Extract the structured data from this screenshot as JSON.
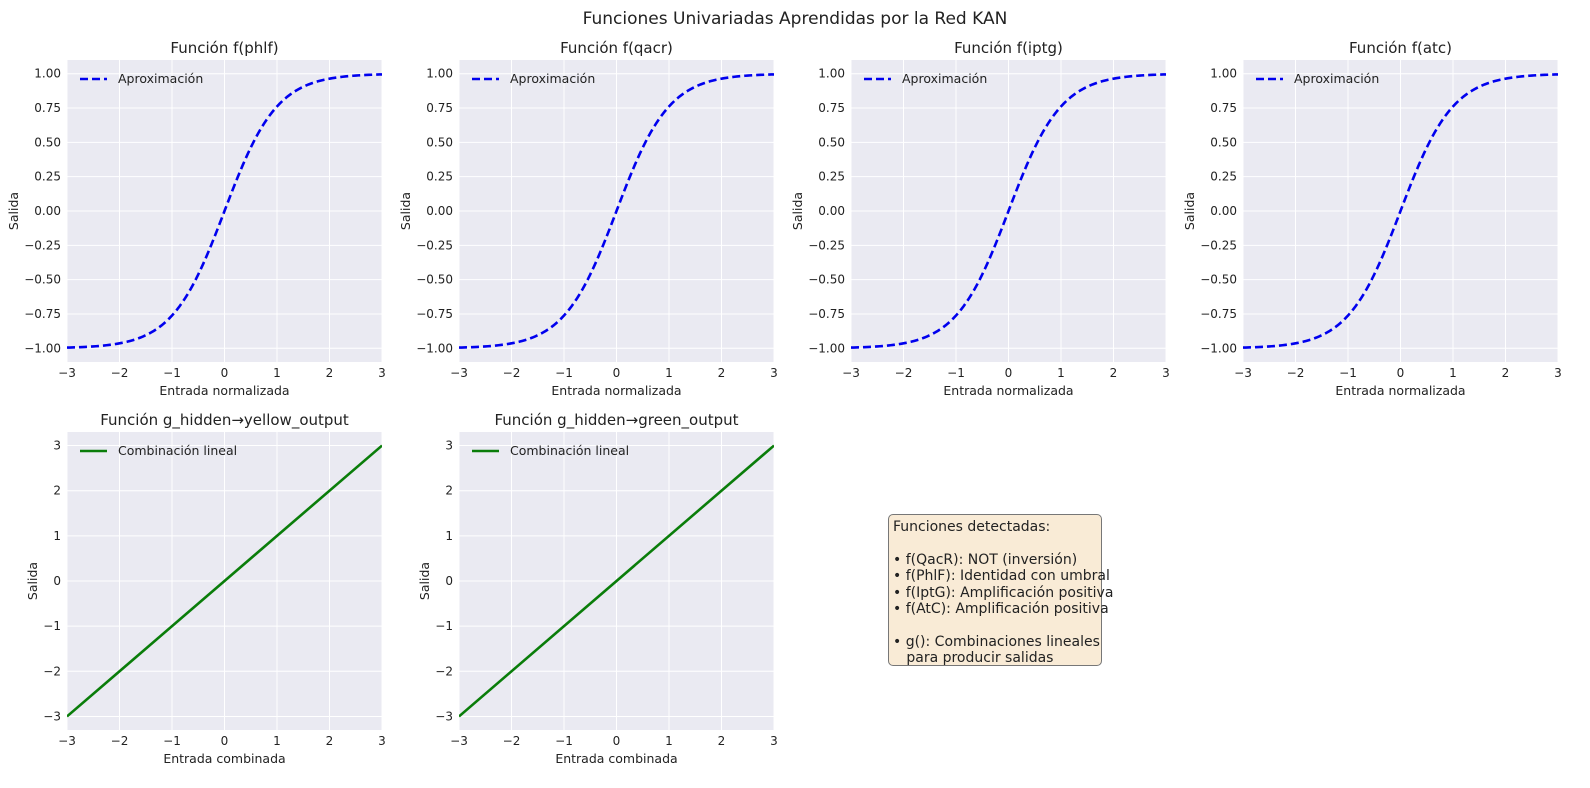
{
  "figure_title": "Funciones Univariadas Aprendidas por la Red KAN",
  "colors": {
    "panel_bg": "#eaeaf2",
    "grid": "#ffffff",
    "blue": "#0000ee",
    "green": "#0a7d0a",
    "note_bg": "#f9ebd6"
  },
  "chart_data": [
    {
      "type": "line",
      "title": "Función f(phlf)",
      "xlabel": "Entrada normalizada",
      "ylabel": "Salida",
      "xlim": [
        -3,
        3
      ],
      "ylim": [
        -1.1,
        1.1
      ],
      "xticks": [
        -3,
        -2,
        -1,
        0,
        1,
        2,
        3
      ],
      "yticks": [
        -1.0,
        -0.75,
        -0.5,
        -0.25,
        0.0,
        0.25,
        0.5,
        0.75,
        1.0
      ],
      "series": [
        {
          "name": "Aproximación",
          "function": "tanh",
          "color": "#0000ee",
          "dashed": true,
          "x": [
            -3,
            -2.5,
            -2,
            -1.5,
            -1,
            -0.5,
            0,
            0.5,
            1,
            1.5,
            2,
            2.5,
            3
          ],
          "y": [
            -0.995,
            -0.987,
            -0.964,
            -0.905,
            -0.762,
            -0.462,
            0,
            0.462,
            0.762,
            0.905,
            0.964,
            0.987,
            0.995
          ]
        }
      ]
    },
    {
      "type": "line",
      "title": "Función f(qacr)",
      "xlabel": "Entrada normalizada",
      "ylabel": "Salida",
      "xlim": [
        -3,
        3
      ],
      "ylim": [
        -1.1,
        1.1
      ],
      "xticks": [
        -3,
        -2,
        -1,
        0,
        1,
        2,
        3
      ],
      "yticks": [
        -1.0,
        -0.75,
        -0.5,
        -0.25,
        0.0,
        0.25,
        0.5,
        0.75,
        1.0
      ],
      "series": [
        {
          "name": "Aproximación",
          "function": "tanh",
          "color": "#0000ee",
          "dashed": true,
          "x": [
            -3,
            -2.5,
            -2,
            -1.5,
            -1,
            -0.5,
            0,
            0.5,
            1,
            1.5,
            2,
            2.5,
            3
          ],
          "y": [
            -0.995,
            -0.987,
            -0.964,
            -0.905,
            -0.762,
            -0.462,
            0,
            0.462,
            0.762,
            0.905,
            0.964,
            0.987,
            0.995
          ]
        }
      ]
    },
    {
      "type": "line",
      "title": "Función f(iptg)",
      "xlabel": "Entrada normalizada",
      "ylabel": "Salida",
      "xlim": [
        -3,
        3
      ],
      "ylim": [
        -1.1,
        1.1
      ],
      "xticks": [
        -3,
        -2,
        -1,
        0,
        1,
        2,
        3
      ],
      "yticks": [
        -1.0,
        -0.75,
        -0.5,
        -0.25,
        0.0,
        0.25,
        0.5,
        0.75,
        1.0
      ],
      "series": [
        {
          "name": "Aproximación",
          "function": "tanh",
          "color": "#0000ee",
          "dashed": true,
          "x": [
            -3,
            -2.5,
            -2,
            -1.5,
            -1,
            -0.5,
            0,
            0.5,
            1,
            1.5,
            2,
            2.5,
            3
          ],
          "y": [
            -0.995,
            -0.987,
            -0.964,
            -0.905,
            -0.762,
            -0.462,
            0,
            0.462,
            0.762,
            0.905,
            0.964,
            0.987,
            0.995
          ]
        }
      ]
    },
    {
      "type": "line",
      "title": "Función f(atc)",
      "xlabel": "Entrada normalizada",
      "ylabel": "Salida",
      "xlim": [
        -3,
        3
      ],
      "ylim": [
        -1.1,
        1.1
      ],
      "xticks": [
        -3,
        -2,
        -1,
        0,
        1,
        2,
        3
      ],
      "yticks": [
        -1.0,
        -0.75,
        -0.5,
        -0.25,
        0.0,
        0.25,
        0.5,
        0.75,
        1.0
      ],
      "series": [
        {
          "name": "Aproximación",
          "function": "tanh",
          "color": "#0000ee",
          "dashed": true,
          "x": [
            -3,
            -2.5,
            -2,
            -1.5,
            -1,
            -0.5,
            0,
            0.5,
            1,
            1.5,
            2,
            2.5,
            3
          ],
          "y": [
            -0.995,
            -0.987,
            -0.964,
            -0.905,
            -0.762,
            -0.462,
            0,
            0.462,
            0.762,
            0.905,
            0.964,
            0.987,
            0.995
          ]
        }
      ]
    },
    {
      "type": "line",
      "title": "Función g_hidden→yellow_output",
      "xlabel": "Entrada combinada",
      "ylabel": "Salida",
      "xlim": [
        -3,
        3
      ],
      "ylim": [
        -3.3,
        3.3
      ],
      "xticks": [
        -3,
        -2,
        -1,
        0,
        1,
        2,
        3
      ],
      "yticks": [
        -3,
        -2,
        -1,
        0,
        1,
        2,
        3
      ],
      "series": [
        {
          "name": "Combinación lineal",
          "function": "linear",
          "color": "#0a7d0a",
          "dashed": false,
          "x": [
            -3,
            3
          ],
          "y": [
            -3,
            3
          ]
        }
      ]
    },
    {
      "type": "line",
      "title": "Función g_hidden→green_output",
      "xlabel": "Entrada combinada",
      "ylabel": "Salida",
      "xlim": [
        -3,
        3
      ],
      "ylim": [
        -3.3,
        3.3
      ],
      "xticks": [
        -3,
        -2,
        -1,
        0,
        1,
        2,
        3
      ],
      "yticks": [
        -3,
        -2,
        -1,
        0,
        1,
        2,
        3
      ],
      "series": [
        {
          "name": "Combinación lineal",
          "function": "linear",
          "color": "#0a7d0a",
          "dashed": false,
          "x": [
            -3,
            3
          ],
          "y": [
            -3,
            3
          ]
        }
      ]
    }
  ],
  "note": {
    "heading": "Funciones detectadas:",
    "items": [
      "• f(QacR): NOT (inversión)",
      "• f(PhlF): Identidad con umbral",
      "• f(IptG): Amplificación positiva",
      "• f(AtC): Amplificación positiva"
    ],
    "footer_line1": "• g(): Combinaciones lineales",
    "footer_line2": "   para producir salidas"
  }
}
